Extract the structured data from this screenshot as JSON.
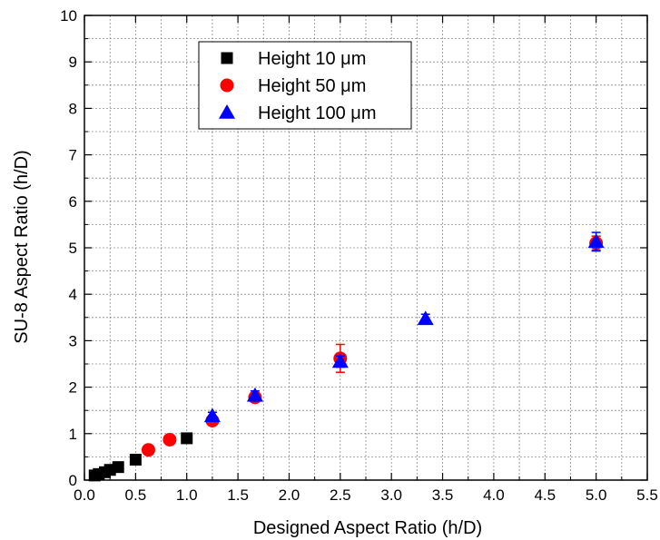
{
  "chart_data": {
    "type": "scatter",
    "title": "",
    "xlabel": "Designed Aspect Ratio (h/D)",
    "ylabel": "SU-8 Aspect Ratio (h/D)",
    "xlim": [
      0.0,
      5.5
    ],
    "ylim": [
      0,
      10
    ],
    "x_ticks": [
      "0.0",
      "0.5",
      "1.0",
      "1.5",
      "2.0",
      "2.5",
      "3.0",
      "3.5",
      "4.0",
      "4.5",
      "5.0",
      "5.5"
    ],
    "y_ticks": [
      "0",
      "1",
      "2",
      "3",
      "4",
      "5",
      "6",
      "7",
      "8",
      "9",
      "10"
    ],
    "grid": true,
    "legend_position": "top-center",
    "series": [
      {
        "name": "Height 10 μm",
        "marker": "square",
        "color": "#000000",
        "points": [
          {
            "x": 0.1,
            "y": 0.1
          },
          {
            "x": 0.14,
            "y": 0.13
          },
          {
            "x": 0.2,
            "y": 0.17
          },
          {
            "x": 0.25,
            "y": 0.22
          },
          {
            "x": 0.33,
            "y": 0.28
          },
          {
            "x": 0.5,
            "y": 0.44
          },
          {
            "x": 1.0,
            "y": 0.9
          }
        ]
      },
      {
        "name": "Height 50 μm",
        "marker": "circle",
        "color": "#ff0000",
        "points": [
          {
            "x": 0.625,
            "y": 0.65
          },
          {
            "x": 0.833,
            "y": 0.87
          },
          {
            "x": 1.25,
            "y": 1.28,
            "err": 0.08
          },
          {
            "x": 1.667,
            "y": 1.78,
            "err": 0.1
          },
          {
            "x": 2.5,
            "y": 2.62,
            "err": 0.3
          },
          {
            "x": 5.0,
            "y": 5.1,
            "err": 0.15
          }
        ]
      },
      {
        "name": "Height 100 μm",
        "marker": "triangle",
        "color": "#0000ff",
        "points": [
          {
            "x": 1.25,
            "y": 1.38,
            "err": 0.08
          },
          {
            "x": 1.667,
            "y": 1.82,
            "err": 0.1
          },
          {
            "x": 2.5,
            "y": 2.55,
            "err": 0.12
          },
          {
            "x": 3.333,
            "y": 3.47,
            "err": 0.1
          },
          {
            "x": 5.0,
            "y": 5.13,
            "err": 0.2
          }
        ]
      }
    ]
  }
}
